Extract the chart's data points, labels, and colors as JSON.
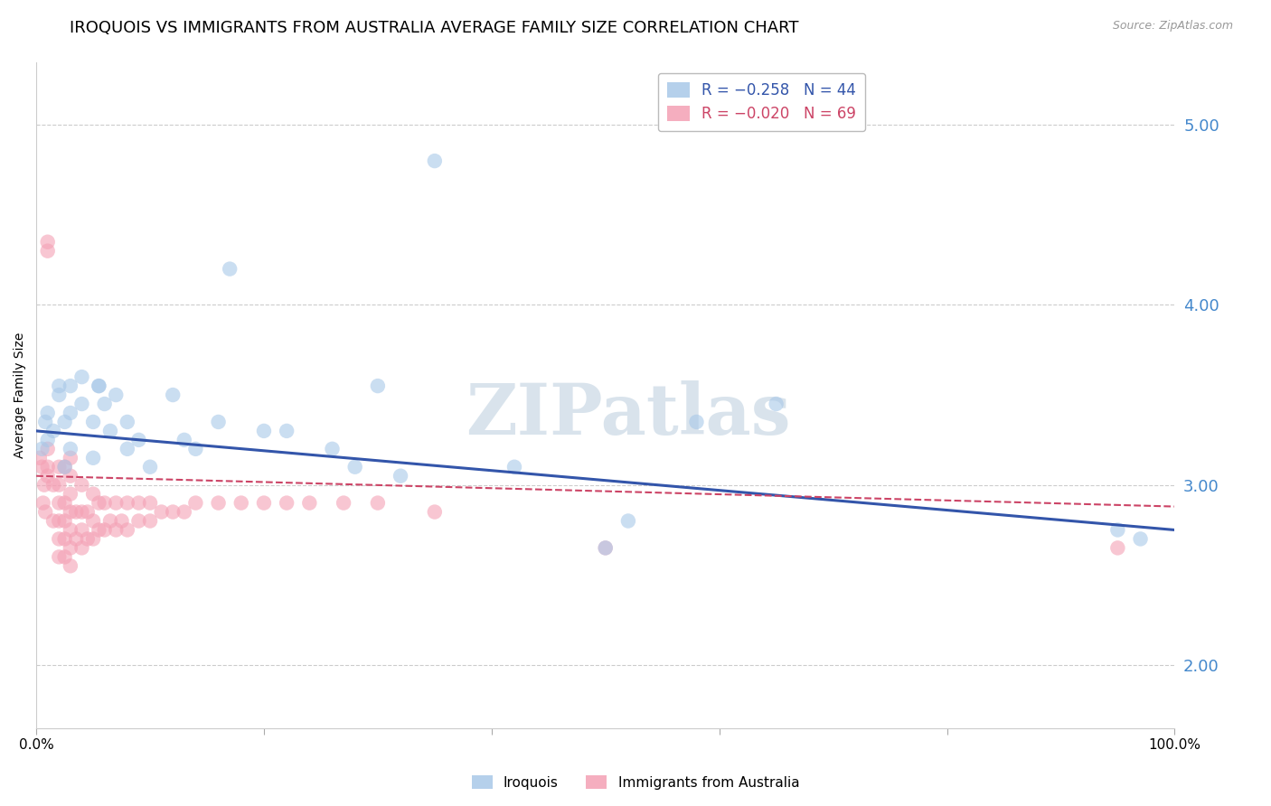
{
  "title": "IROQUOIS VS IMMIGRANTS FROM AUSTRALIA AVERAGE FAMILY SIZE CORRELATION CHART",
  "source": "Source: ZipAtlas.com",
  "ylabel": "Average Family Size",
  "right_yticks": [
    2.0,
    3.0,
    4.0,
    5.0
  ],
  "watermark": "ZIPatlas",
  "legend_line1": "R = −0.258   N = 44",
  "legend_line2": "R = −0.020   N = 69",
  "iroquois_color": "#a8c8e8",
  "australia_color": "#f4a0b4",
  "iroquois_line_color": "#3355aa",
  "australia_line_color": "#cc4466",
  "title_fontsize": 13,
  "axis_label_fontsize": 10,
  "tick_fontsize": 11,
  "right_tick_color": "#4488cc",
  "xlim": [
    0.0,
    1.0
  ],
  "ylim": [
    1.65,
    5.35
  ],
  "iroquois_scatter_x": [
    0.005,
    0.008,
    0.01,
    0.01,
    0.015,
    0.02,
    0.02,
    0.025,
    0.025,
    0.03,
    0.03,
    0.03,
    0.04,
    0.04,
    0.05,
    0.05,
    0.055,
    0.055,
    0.06,
    0.065,
    0.07,
    0.08,
    0.08,
    0.09,
    0.1,
    0.12,
    0.13,
    0.14,
    0.16,
    0.17,
    0.2,
    0.22,
    0.26,
    0.28,
    0.3,
    0.32,
    0.35,
    0.42,
    0.5,
    0.52,
    0.58,
    0.65,
    0.95,
    0.97
  ],
  "iroquois_scatter_y": [
    3.2,
    3.35,
    3.25,
    3.4,
    3.3,
    3.5,
    3.55,
    3.35,
    3.1,
    3.55,
    3.4,
    3.2,
    3.6,
    3.45,
    3.35,
    3.15,
    3.55,
    3.55,
    3.45,
    3.3,
    3.5,
    3.35,
    3.2,
    3.25,
    3.1,
    3.5,
    3.25,
    3.2,
    3.35,
    4.2,
    3.3,
    3.3,
    3.2,
    3.1,
    3.55,
    3.05,
    4.8,
    3.1,
    2.65,
    2.8,
    3.35,
    3.45,
    2.75,
    2.7
  ],
  "australia_scatter_x": [
    0.003,
    0.005,
    0.006,
    0.007,
    0.008,
    0.01,
    0.01,
    0.01,
    0.01,
    0.01,
    0.015,
    0.015,
    0.02,
    0.02,
    0.02,
    0.02,
    0.02,
    0.02,
    0.025,
    0.025,
    0.025,
    0.025,
    0.025,
    0.03,
    0.03,
    0.03,
    0.03,
    0.03,
    0.03,
    0.03,
    0.035,
    0.035,
    0.04,
    0.04,
    0.04,
    0.04,
    0.045,
    0.045,
    0.05,
    0.05,
    0.05,
    0.055,
    0.055,
    0.06,
    0.06,
    0.065,
    0.07,
    0.07,
    0.075,
    0.08,
    0.08,
    0.09,
    0.09,
    0.1,
    0.1,
    0.11,
    0.12,
    0.13,
    0.14,
    0.16,
    0.18,
    0.2,
    0.22,
    0.24,
    0.27,
    0.3,
    0.35,
    0.5,
    0.95
  ],
  "australia_scatter_y": [
    3.15,
    3.1,
    2.9,
    3.0,
    2.85,
    4.35,
    4.3,
    3.2,
    3.1,
    3.05,
    2.8,
    3.0,
    2.6,
    2.7,
    2.8,
    2.9,
    3.0,
    3.1,
    2.6,
    2.7,
    2.8,
    2.9,
    3.1,
    2.55,
    2.65,
    2.75,
    2.85,
    2.95,
    3.05,
    3.15,
    2.7,
    2.85,
    2.65,
    2.75,
    2.85,
    3.0,
    2.7,
    2.85,
    2.7,
    2.8,
    2.95,
    2.75,
    2.9,
    2.75,
    2.9,
    2.8,
    2.75,
    2.9,
    2.8,
    2.75,
    2.9,
    2.8,
    2.9,
    2.8,
    2.9,
    2.85,
    2.85,
    2.85,
    2.9,
    2.9,
    2.9,
    2.9,
    2.9,
    2.9,
    2.9,
    2.9,
    2.85,
    2.65,
    2.65
  ]
}
